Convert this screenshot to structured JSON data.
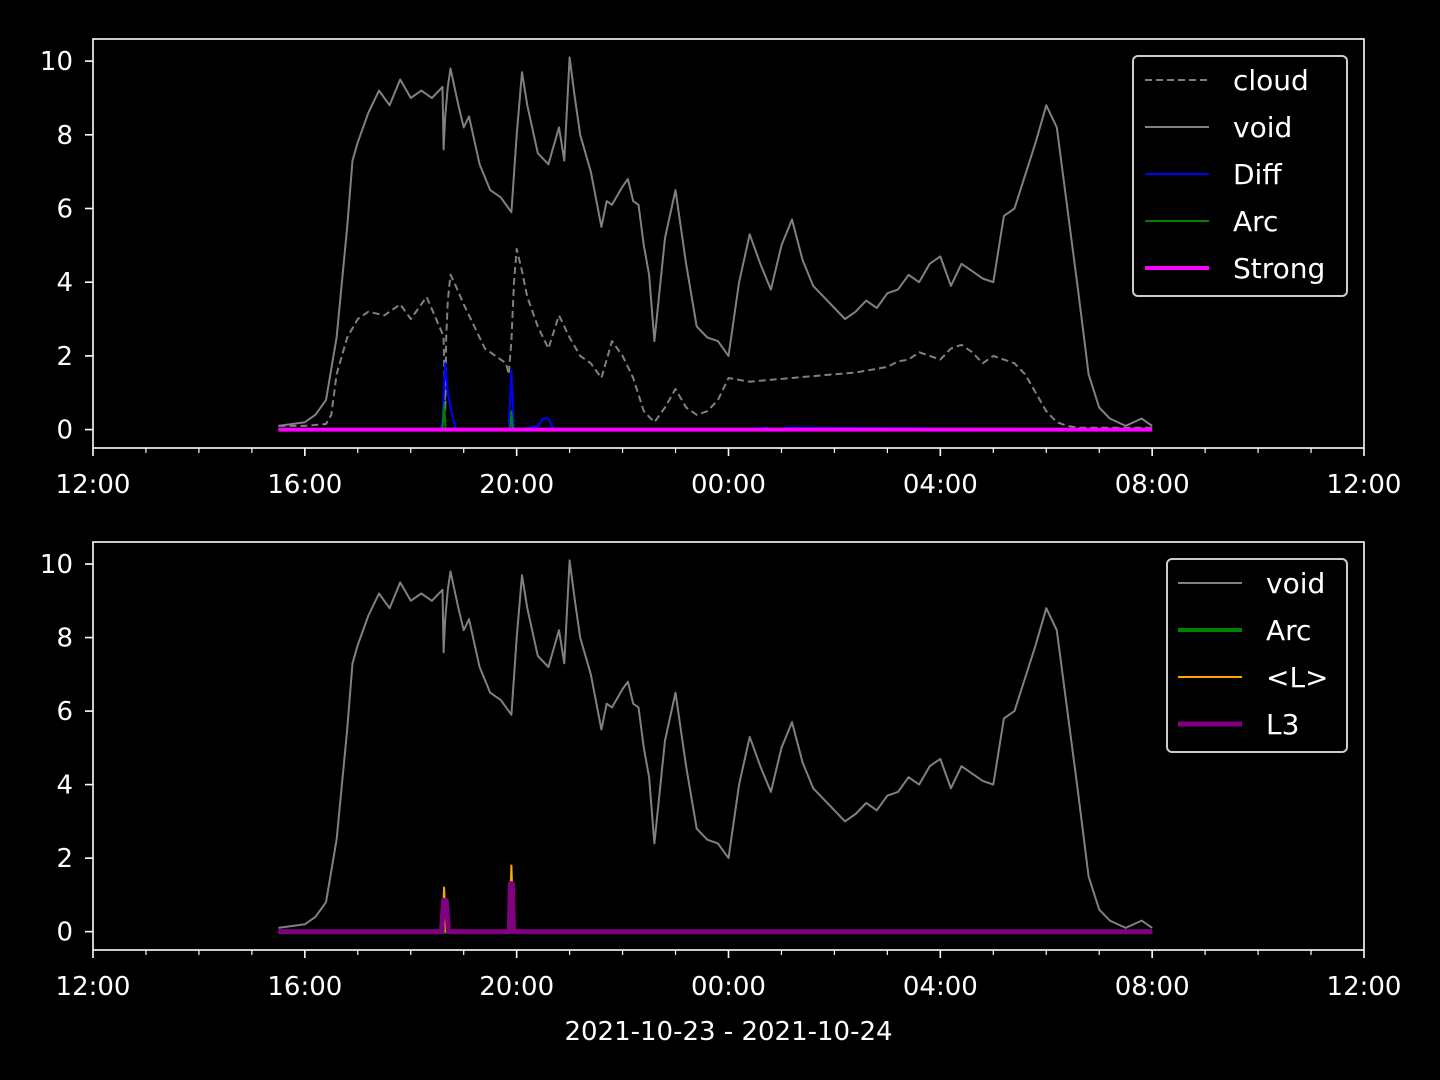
{
  "chart_data": [
    {
      "type": "line",
      "panel": "top",
      "xlabel": "",
      "ylabel": "",
      "x_tick_labels": [
        "12:00",
        "16:00",
        "20:00",
        "00:00",
        "04:00",
        "08:00",
        "12:00"
      ],
      "y_tick_labels": [
        "0",
        "2",
        "4",
        "6",
        "8",
        "10"
      ],
      "xlim_hours": [
        12,
        36
      ],
      "ylim": [
        -0.5,
        10.6
      ],
      "legend_placement": "upper-right",
      "series": [
        {
          "name": "cloud",
          "color": "#808080",
          "style": "dashed",
          "width": 2,
          "x": [
            15.5,
            16.0,
            16.4,
            16.5,
            16.6,
            16.8,
            17.0,
            17.2,
            17.5,
            17.8,
            18.0,
            18.3,
            18.6,
            18.62,
            18.65,
            18.67,
            18.7,
            18.75,
            18.85,
            19.0,
            19.2,
            19.4,
            19.6,
            19.8,
            19.85,
            19.9,
            19.95,
            20.0,
            20.1,
            20.2,
            20.4,
            20.6,
            20.8,
            21.0,
            21.2,
            21.4,
            21.6,
            21.8,
            22.0,
            22.2,
            22.4,
            22.6,
            22.8,
            23.0,
            23.2,
            23.4,
            23.6,
            23.8,
            24.0,
            24.4,
            24.8,
            25.2,
            25.6,
            26.0,
            26.4,
            26.8,
            27.0,
            27.2,
            27.4,
            27.6,
            27.8,
            28.0,
            28.2,
            28.4,
            28.6,
            28.8,
            29.0,
            29.2,
            29.4,
            29.6,
            29.8,
            30.0,
            30.2,
            30.4,
            30.6,
            30.8,
            31.0,
            31.2,
            31.5,
            31.8,
            32.0
          ],
          "y": [
            0.1,
            0.1,
            0.15,
            0.4,
            1.5,
            2.5,
            3.0,
            3.2,
            3.1,
            3.4,
            3.0,
            3.6,
            2.6,
            2.5,
            0.5,
            2.5,
            3.5,
            4.2,
            3.9,
            3.4,
            2.8,
            2.2,
            2.0,
            1.8,
            1.5,
            2.4,
            4.0,
            4.9,
            4.3,
            3.6,
            2.8,
            2.2,
            3.1,
            2.5,
            2.0,
            1.8,
            1.4,
            2.4,
            2.0,
            1.4,
            0.5,
            0.2,
            0.6,
            1.1,
            0.6,
            0.4,
            0.5,
            0.8,
            1.4,
            1.3,
            1.35,
            1.4,
            1.45,
            1.5,
            1.55,
            1.65,
            1.7,
            1.85,
            1.9,
            2.1,
            2.0,
            1.9,
            2.2,
            2.3,
            2.1,
            1.8,
            2.0,
            1.9,
            1.8,
            1.5,
            1.0,
            0.5,
            0.2,
            0.1,
            0.05,
            0.05,
            0.05,
            0.05,
            0.05,
            0.05,
            0.05
          ]
        },
        {
          "name": "void",
          "color": "#808080",
          "style": "solid",
          "width": 2,
          "x": [
            15.5,
            16.0,
            16.2,
            16.4,
            16.6,
            16.8,
            16.9,
            17.0,
            17.2,
            17.4,
            17.6,
            17.8,
            18.0,
            18.2,
            18.4,
            18.6,
            18.62,
            18.65,
            18.7,
            18.75,
            18.9,
            19.0,
            19.1,
            19.3,
            19.5,
            19.7,
            19.9,
            20.0,
            20.1,
            20.2,
            20.4,
            20.6,
            20.8,
            20.9,
            21.0,
            21.1,
            21.2,
            21.4,
            21.6,
            21.7,
            21.8,
            22.0,
            22.1,
            22.2,
            22.3,
            22.4,
            22.5,
            22.6,
            22.8,
            23.0,
            23.2,
            23.4,
            23.6,
            23.8,
            24.0,
            24.2,
            24.4,
            24.6,
            24.8,
            25.0,
            25.2,
            25.4,
            25.6,
            25.8,
            26.0,
            26.2,
            26.4,
            26.6,
            26.8,
            27.0,
            27.2,
            27.4,
            27.6,
            27.8,
            28.0,
            28.2,
            28.4,
            28.6,
            28.8,
            29.0,
            29.2,
            29.4,
            29.6,
            29.8,
            30.0,
            30.2,
            30.4,
            30.6,
            30.8,
            31.0,
            31.2,
            31.5,
            31.8,
            32.0
          ],
          "y": [
            0.1,
            0.2,
            0.4,
            0.8,
            2.5,
            5.5,
            7.3,
            7.8,
            8.6,
            9.2,
            8.8,
            9.5,
            9.0,
            9.2,
            9.0,
            9.3,
            7.6,
            8.5,
            9.3,
            9.8,
            8.8,
            8.2,
            8.5,
            7.2,
            6.5,
            6.3,
            5.9,
            8.0,
            9.7,
            8.8,
            7.5,
            7.2,
            8.2,
            7.3,
            10.1,
            9.0,
            8.0,
            7.0,
            5.5,
            6.2,
            6.1,
            6.6,
            6.8,
            6.2,
            6.1,
            5.0,
            4.2,
            2.4,
            5.2,
            6.5,
            4.5,
            2.8,
            2.5,
            2.4,
            2.0,
            4.0,
            5.3,
            4.5,
            3.8,
            5.0,
            5.7,
            4.6,
            3.9,
            3.6,
            3.3,
            3.0,
            3.2,
            3.5,
            3.3,
            3.7,
            3.8,
            4.2,
            4.0,
            4.5,
            4.7,
            3.9,
            4.5,
            4.3,
            4.1,
            4.0,
            5.8,
            6.0,
            6.9,
            7.8,
            8.8,
            8.2,
            6.0,
            3.8,
            1.5,
            0.6,
            0.3,
            0.1,
            0.3,
            0.1
          ]
        },
        {
          "name": "Diff",
          "color": "#0000ff",
          "style": "solid",
          "width": 2,
          "x": [
            15.5,
            18.55,
            18.6,
            18.65,
            18.7,
            18.75,
            18.85,
            19.5,
            19.85,
            19.9,
            19.95,
            20.05,
            20.4,
            20.5,
            20.6,
            20.7,
            23.0,
            24.5,
            24.7,
            24.9,
            25.1,
            32.0
          ],
          "y": [
            0,
            0,
            0.2,
            1.8,
            1.0,
            0.6,
            0,
            0,
            0,
            1.6,
            0,
            0,
            0.1,
            0.3,
            0.3,
            0,
            0,
            0,
            0.05,
            0,
            0.05,
            0
          ]
        },
        {
          "name": "Arc",
          "color": "#008000",
          "style": "solid",
          "width": 2,
          "x": [
            15.5,
            18.6,
            18.63,
            18.66,
            18.7,
            19.88,
            19.9,
            19.93,
            32.0
          ],
          "y": [
            0,
            0,
            0.7,
            0,
            0,
            0,
            0.5,
            0,
            0
          ]
        },
        {
          "name": "Strong",
          "color": "#ff00ff",
          "style": "solid",
          "width": 4,
          "x": [
            15.5,
            32.0
          ],
          "y": [
            0,
            0
          ]
        }
      ]
    },
    {
      "type": "line",
      "panel": "bottom",
      "xlabel": "2021-10-23 - 2021-10-24",
      "ylabel": "",
      "x_tick_labels": [
        "12:00",
        "16:00",
        "20:00",
        "00:00",
        "04:00",
        "08:00",
        "12:00"
      ],
      "y_tick_labels": [
        "0",
        "2",
        "4",
        "6",
        "8",
        "10"
      ],
      "xlim_hours": [
        12,
        36
      ],
      "ylim": [
        -0.5,
        10.6
      ],
      "legend_placement": "upper-right",
      "series": [
        {
          "name": "void",
          "color": "#808080",
          "style": "solid",
          "width": 2,
          "x": [
            15.5,
            16.0,
            16.2,
            16.4,
            16.6,
            16.8,
            16.9,
            17.0,
            17.2,
            17.4,
            17.6,
            17.8,
            18.0,
            18.2,
            18.4,
            18.6,
            18.62,
            18.65,
            18.7,
            18.75,
            18.9,
            19.0,
            19.1,
            19.3,
            19.5,
            19.7,
            19.9,
            20.0,
            20.1,
            20.2,
            20.4,
            20.6,
            20.8,
            20.9,
            21.0,
            21.1,
            21.2,
            21.4,
            21.6,
            21.7,
            21.8,
            22.0,
            22.1,
            22.2,
            22.3,
            22.4,
            22.5,
            22.6,
            22.8,
            23.0,
            23.2,
            23.4,
            23.6,
            23.8,
            24.0,
            24.2,
            24.4,
            24.6,
            24.8,
            25.0,
            25.2,
            25.4,
            25.6,
            25.8,
            26.0,
            26.2,
            26.4,
            26.6,
            26.8,
            27.0,
            27.2,
            27.4,
            27.6,
            27.8,
            28.0,
            28.2,
            28.4,
            28.6,
            28.8,
            29.0,
            29.2,
            29.4,
            29.6,
            29.8,
            30.0,
            30.2,
            30.4,
            30.6,
            30.8,
            31.0,
            31.2,
            31.5,
            31.8,
            32.0
          ],
          "y": [
            0.1,
            0.2,
            0.4,
            0.8,
            2.5,
            5.5,
            7.3,
            7.8,
            8.6,
            9.2,
            8.8,
            9.5,
            9.0,
            9.2,
            9.0,
            9.3,
            7.6,
            8.5,
            9.3,
            9.8,
            8.8,
            8.2,
            8.5,
            7.2,
            6.5,
            6.3,
            5.9,
            8.0,
            9.7,
            8.8,
            7.5,
            7.2,
            8.2,
            7.3,
            10.1,
            9.0,
            8.0,
            7.0,
            5.5,
            6.2,
            6.1,
            6.6,
            6.8,
            6.2,
            6.1,
            5.0,
            4.2,
            2.4,
            5.2,
            6.5,
            4.5,
            2.8,
            2.5,
            2.4,
            2.0,
            4.0,
            5.3,
            4.5,
            3.8,
            5.0,
            5.7,
            4.6,
            3.9,
            3.6,
            3.3,
            3.0,
            3.2,
            3.5,
            3.3,
            3.7,
            3.8,
            4.2,
            4.0,
            4.5,
            4.7,
            3.9,
            4.5,
            4.3,
            4.1,
            4.0,
            5.8,
            6.0,
            6.9,
            7.8,
            8.8,
            8.2,
            6.0,
            3.8,
            1.5,
            0.6,
            0.3,
            0.1,
            0.3,
            0.1
          ]
        },
        {
          "name": "Arc",
          "color": "#008000",
          "style": "solid",
          "width": 4,
          "x": [
            15.5,
            32.0
          ],
          "y": [
            0,
            0
          ]
        },
        {
          "name": "<L>",
          "color": "#ffa500",
          "style": "solid",
          "width": 2,
          "x": [
            15.5,
            18.6,
            18.63,
            18.66,
            18.7,
            19.86,
            19.9,
            19.94,
            32.0
          ],
          "y": [
            0,
            0,
            1.2,
            0,
            0,
            0,
            1.8,
            0,
            0
          ]
        },
        {
          "name": "L3",
          "color": "#800080",
          "style": "solid",
          "width": 5,
          "x": [
            15.5,
            18.58,
            18.62,
            18.67,
            18.71,
            19.86,
            19.88,
            19.92,
            19.94,
            32.0
          ],
          "y": [
            0,
            0,
            0.85,
            0.85,
            0,
            0,
            1.3,
            1.3,
            0,
            0
          ]
        }
      ]
    }
  ]
}
